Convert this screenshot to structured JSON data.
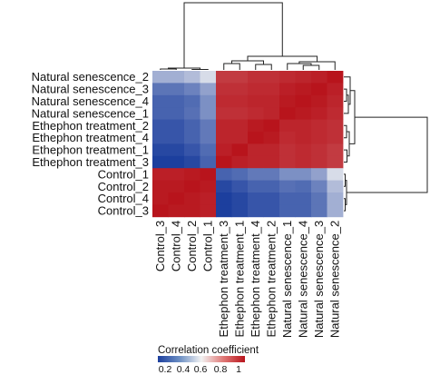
{
  "chart_data": {
    "type": "heatmap",
    "title": "",
    "rows": [
      "Natural senescence_2",
      "Natural senescence_3",
      "Natural senescence_4",
      "Natural senescence_1",
      "Ethephon treatment_2",
      "Ethephon treatment_4",
      "Ethephon treatment_1",
      "Ethephon treatment_3",
      "Control_1",
      "Control_2",
      "Control_4",
      "Control_3"
    ],
    "columns": [
      "Control_3",
      "Control_4",
      "Control_2",
      "Control_1",
      "Ethephon treatment_3",
      "Ethephon treatment_1",
      "Ethephon treatment_4",
      "Ethephon treatment_2",
      "Natural senescence_1",
      "Natural senescence_4",
      "Natural senescence_3",
      "Natural senescence_2"
    ],
    "values": [
      [
        0.45,
        0.45,
        0.48,
        0.55,
        0.93,
        0.93,
        0.95,
        0.95,
        0.96,
        0.97,
        0.98,
        1.0
      ],
      [
        0.32,
        0.32,
        0.35,
        0.42,
        0.95,
        0.95,
        0.96,
        0.96,
        0.98,
        0.99,
        1.0,
        0.98
      ],
      [
        0.28,
        0.28,
        0.3,
        0.38,
        0.96,
        0.96,
        0.97,
        0.97,
        0.99,
        1.0,
        0.99,
        0.97
      ],
      [
        0.28,
        0.28,
        0.31,
        0.38,
        0.95,
        0.95,
        0.96,
        0.97,
        1.0,
        0.99,
        0.98,
        0.96
      ],
      [
        0.25,
        0.25,
        0.28,
        0.33,
        0.97,
        0.97,
        0.99,
        1.0,
        0.97,
        0.97,
        0.96,
        0.95
      ],
      [
        0.25,
        0.25,
        0.28,
        0.33,
        0.97,
        0.97,
        1.0,
        0.99,
        0.96,
        0.97,
        0.96,
        0.95
      ],
      [
        0.22,
        0.22,
        0.25,
        0.3,
        0.98,
        1.0,
        0.97,
        0.97,
        0.95,
        0.96,
        0.95,
        0.93
      ],
      [
        0.2,
        0.2,
        0.22,
        0.28,
        1.0,
        0.98,
        0.97,
        0.97,
        0.95,
        0.96,
        0.95,
        0.93
      ],
      [
        0.98,
        0.98,
        0.99,
        1.0,
        0.28,
        0.3,
        0.33,
        0.33,
        0.38,
        0.38,
        0.42,
        0.55
      ],
      [
        0.99,
        0.99,
        1.0,
        0.99,
        0.22,
        0.25,
        0.28,
        0.28,
        0.31,
        0.3,
        0.35,
        0.48
      ],
      [
        0.99,
        1.0,
        0.99,
        0.98,
        0.2,
        0.22,
        0.25,
        0.25,
        0.28,
        0.28,
        0.32,
        0.45
      ],
      [
        1.0,
        0.99,
        0.99,
        0.98,
        0.2,
        0.22,
        0.25,
        0.25,
        0.28,
        0.28,
        0.32,
        0.45
      ]
    ],
    "vmin": 0.2,
    "vmax": 1.0,
    "legend": {
      "title": "Correlation coefficient",
      "ticks": [
        "0.2",
        "0.4",
        "0.6",
        "0.8",
        "1"
      ],
      "colors": [
        "#1c3f9e",
        "#6c8fc4",
        "#f2f2f2",
        "#e07a78",
        "#b8141c"
      ]
    }
  },
  "colors": {
    "low": "#1c3f9e",
    "mid": "#f2f2f2",
    "high": "#b8141c"
  }
}
